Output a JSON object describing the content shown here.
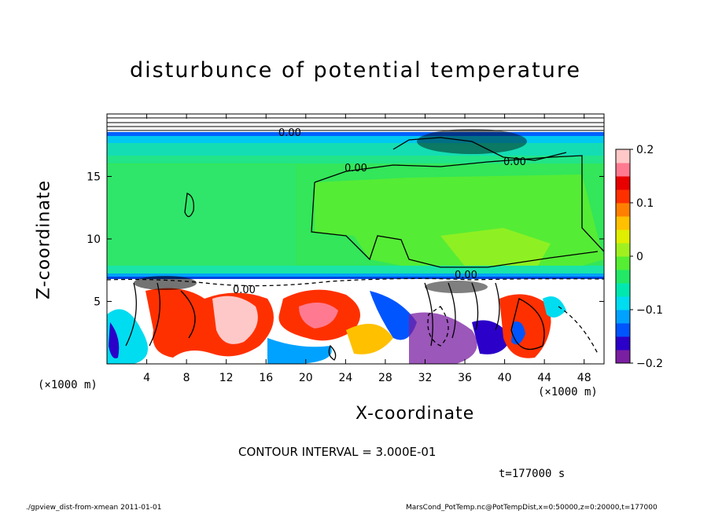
{
  "chart_data": {
    "type": "heatmap",
    "title": "disturbunce of potential temperature",
    "xlabel": "X-coordinate",
    "ylabel": "Z-coordinate",
    "x_unit_label": "(×1000 m)",
    "x_ticks": [
      4,
      8,
      12,
      16,
      20,
      24,
      28,
      32,
      36,
      40,
      44,
      48
    ],
    "y_ticks": [
      5,
      10,
      15
    ],
    "xlim": [
      0,
      50
    ],
    "ylim": [
      0,
      20
    ],
    "colorbar": {
      "ticks": [
        0.2,
        0.1,
        0,
        -0.1,
        -0.2
      ],
      "tick_labels": [
        "0.2",
        "0.1",
        "0",
        "−0.1",
        "−0.2"
      ],
      "range": [
        -0.2,
        0.2
      ],
      "colors": [
        "#7a1fa2",
        "#2b00c8",
        "#0055ff",
        "#00a2ff",
        "#00dcf0",
        "#00e8b0",
        "#22e866",
        "#55ee33",
        "#a0f020",
        "#e0ee00",
        "#ffc000",
        "#ff8000",
        "#ff3000",
        "#e80000",
        "#ff7a90",
        "#ffc8c8"
      ]
    },
    "contour_labels": [
      "0.00",
      "0.00",
      "0.00",
      "0.00",
      "0.00"
    ],
    "contour_interval_text": "CONTOUR INTERVAL = 3.000E-01",
    "time_text": "t=177000 s"
  },
  "footer": {
    "left": "./gpview_dist-from-xmean   2011-01-01",
    "right": "MarsCond_PotTemp.nc@PotTempDist,x=0:50000,z=0:20000,t=177000"
  }
}
